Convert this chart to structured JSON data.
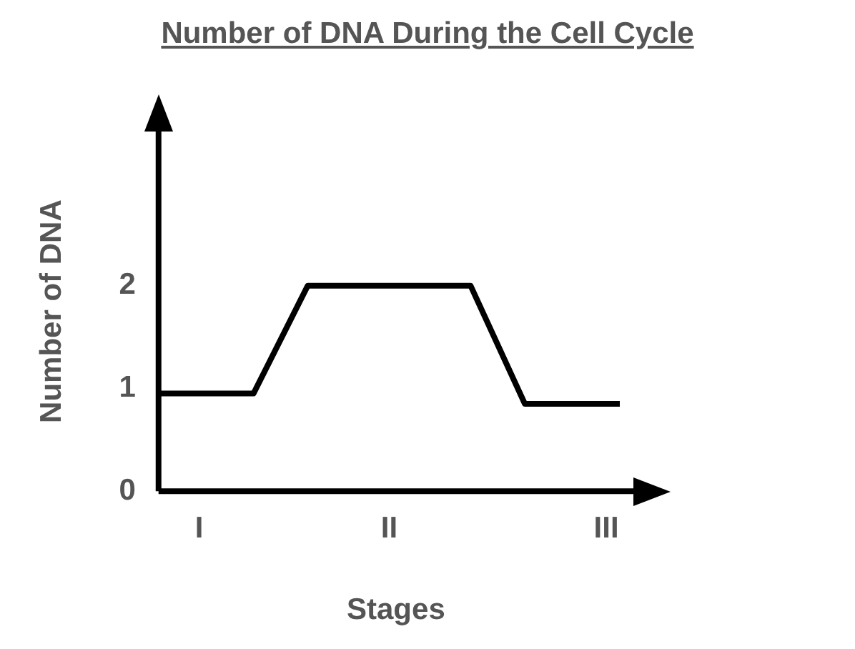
{
  "chart_data": {
    "type": "line",
    "title": "Number of DNA During the Cell Cycle",
    "xlabel": "Stages",
    "ylabel": "Number of DNA",
    "categories": [
      null,
      null,
      null,
      "I",
      null,
      null,
      null,
      null,
      null,
      null,
      null,
      null,
      null,
      null,
      null,
      null,
      null,
      "II",
      null,
      null,
      null,
      null,
      null,
      null,
      null,
      null,
      null,
      null,
      null,
      null,
      null,
      null,
      null,
      "III",
      null,
      null
    ],
    "series": [
      {
        "color": "#000000",
        "values": [
          0.95,
          null,
          null,
          null,
          null,
          null,
          null,
          0.95,
          null,
          null,
          null,
          2,
          null,
          null,
          null,
          null,
          null,
          null,
          null,
          null,
          null,
          null,
          null,
          2,
          null,
          null,
          null,
          0.85,
          null,
          null,
          null,
          null,
          null,
          null,
          0.85,
          null
        ]
      }
    ],
    "ylim": [
      0,
      3.5
    ],
    "yticks": [
      0,
      1,
      2
    ],
    "grid": false,
    "legend": false,
    "marker": "none",
    "line_style": "solid"
  }
}
